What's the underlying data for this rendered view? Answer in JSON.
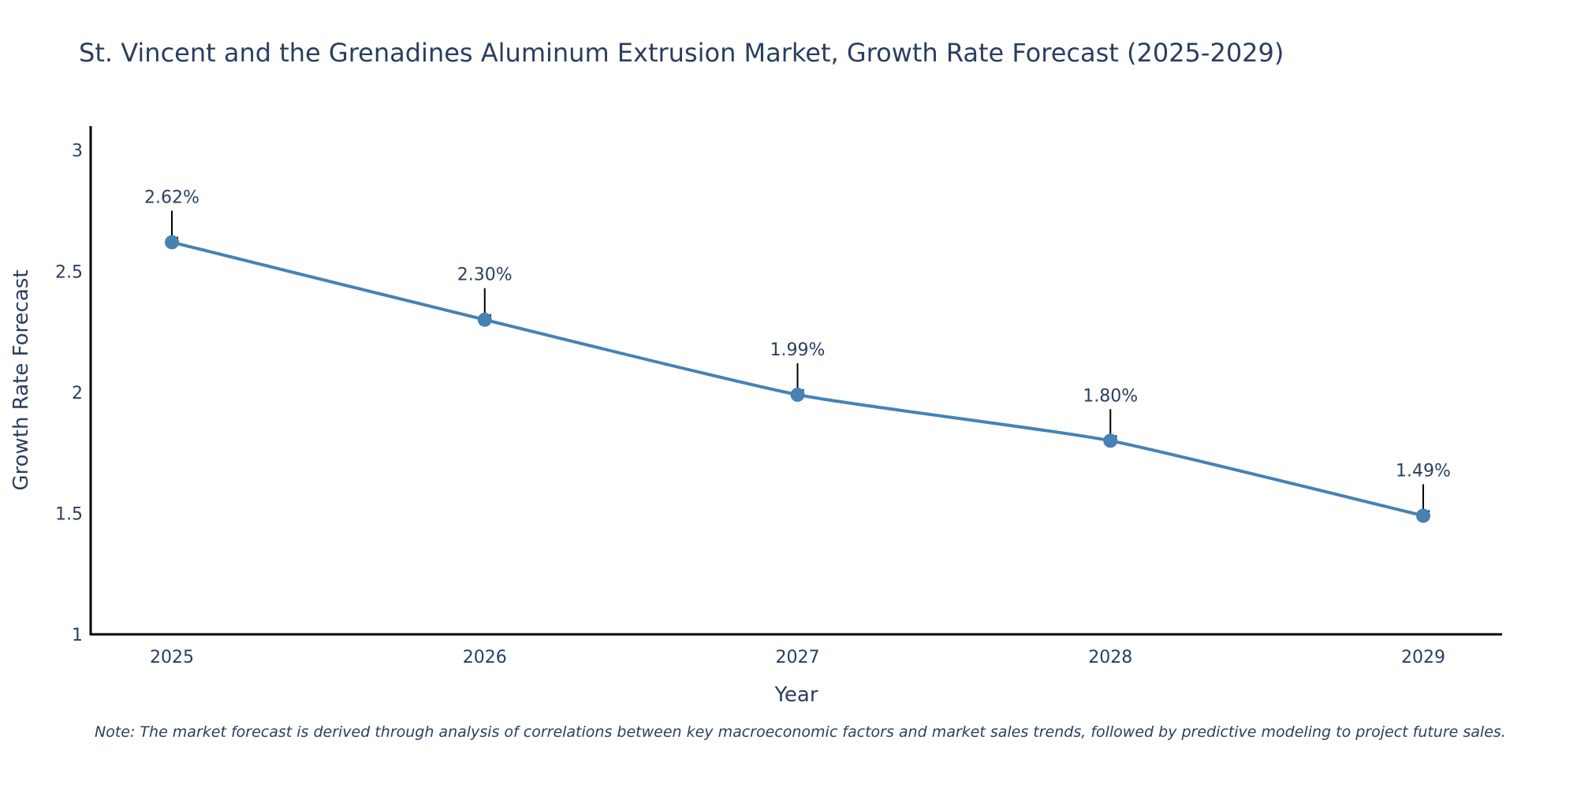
{
  "chart_data": {
    "type": "line",
    "title": "St. Vincent and the Grenadines Aluminum Extrusion Market, Growth Rate Forecast (2025-2029)",
    "xlabel": "Year",
    "ylabel": "Growth Rate Forecast",
    "categories": [
      "2025",
      "2026",
      "2027",
      "2028",
      "2029"
    ],
    "series": [
      {
        "name": "Growth Rate Forecast",
        "values": [
          2.62,
          2.3,
          1.99,
          1.8,
          1.49
        ],
        "labels": [
          "2.62%",
          "2.30%",
          "1.99%",
          "1.80%",
          "1.49%"
        ]
      }
    ],
    "ylim": [
      1,
      3.1
    ],
    "yticks": [
      1,
      1.5,
      2,
      2.5,
      3
    ],
    "ytick_labels": [
      "1",
      "1.5",
      "2",
      "2.5",
      "3"
    ],
    "grid": false,
    "line_color": "#4682b4",
    "axis_color": "#000000",
    "text_color": "#2a3f5f",
    "note": "Note: The market forecast is derived through analysis of correlations between key macroeconomic factors and market sales trends, followed by predictive modeling to project future sales."
  }
}
